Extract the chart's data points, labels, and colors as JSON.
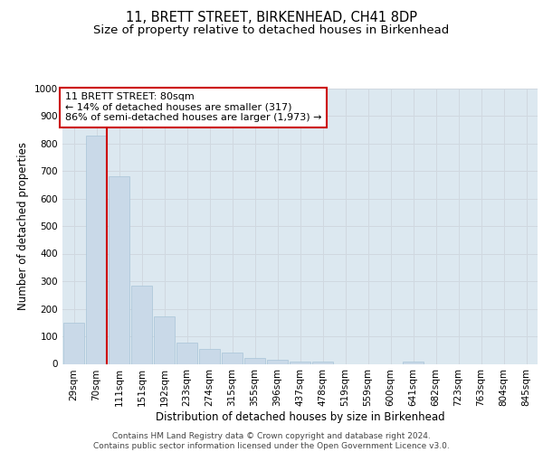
{
  "title_line1": "11, BRETT STREET, BIRKENHEAD, CH41 8DP",
  "title_line2": "Size of property relative to detached houses in Birkenhead",
  "xlabel": "Distribution of detached houses by size in Birkenhead",
  "ylabel": "Number of detached properties",
  "categories": [
    "29sqm",
    "70sqm",
    "111sqm",
    "151sqm",
    "192sqm",
    "233sqm",
    "274sqm",
    "315sqm",
    "355sqm",
    "396sqm",
    "437sqm",
    "478sqm",
    "519sqm",
    "559sqm",
    "600sqm",
    "641sqm",
    "682sqm",
    "723sqm",
    "763sqm",
    "804sqm",
    "845sqm"
  ],
  "values": [
    150,
    828,
    680,
    283,
    172,
    78,
    55,
    42,
    22,
    14,
    8,
    8,
    0,
    0,
    0,
    8,
    0,
    0,
    0,
    0,
    0
  ],
  "bar_color": "#c9d9e8",
  "bar_edge_color": "#a8c4d8",
  "property_line_x": 1.45,
  "annotation_text": "11 BRETT STREET: 80sqm\n← 14% of detached houses are smaller (317)\n86% of semi-detached houses are larger (1,973) →",
  "annotation_box_color": "#ffffff",
  "annotation_box_edge_color": "#cc0000",
  "line_color": "#cc0000",
  "ylim": [
    0,
    1000
  ],
  "yticks": [
    0,
    100,
    200,
    300,
    400,
    500,
    600,
    700,
    800,
    900,
    1000
  ],
  "grid_color": "#d0d8e0",
  "background_color": "#dce8f0",
  "footer_line1": "Contains HM Land Registry data © Crown copyright and database right 2024.",
  "footer_line2": "Contains public sector information licensed under the Open Government Licence v3.0.",
  "title_fontsize": 10.5,
  "subtitle_fontsize": 9.5,
  "tick_fontsize": 7.5,
  "ylabel_fontsize": 8.5,
  "xlabel_fontsize": 8.5,
  "annotation_fontsize": 8.0,
  "footer_fontsize": 6.5
}
